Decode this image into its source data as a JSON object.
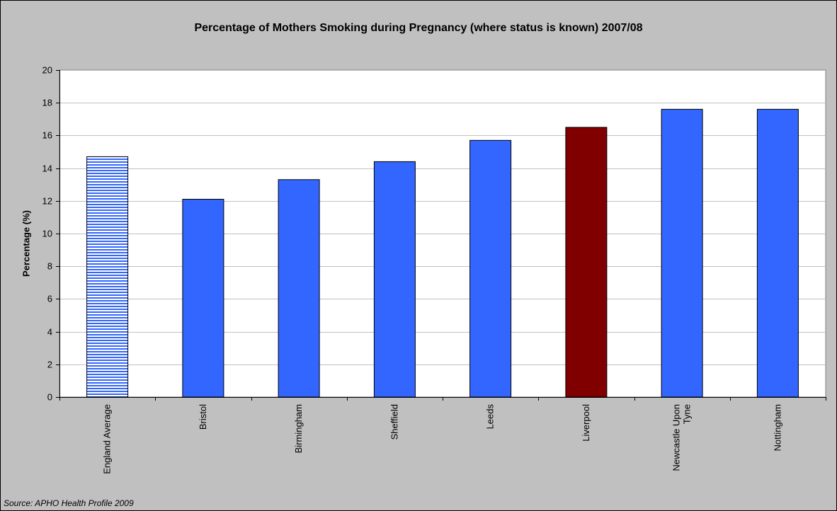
{
  "chart_data": {
    "type": "bar",
    "title": "Percentage of Mothers Smoking during Pregnancy (where status is known) 2007/08",
    "ylabel": "Percentage (%)",
    "xlabel": "",
    "ylim": [
      0,
      20
    ],
    "ytick_step": 2,
    "grid": "horizontal",
    "legend": "none",
    "categories": [
      "England Average",
      "Bristol",
      "Birmingham",
      "Sheffield",
      "Leeds",
      "Liverpool",
      "Newcastle Upon Tyne",
      "Nottingham"
    ],
    "category_lines": [
      [
        "England Average"
      ],
      [
        "Bristol"
      ],
      [
        "Birmingham"
      ],
      [
        "Sheffield"
      ],
      [
        "Leeds"
      ],
      [
        "Liverpool"
      ],
      [
        "Newcastle Upon",
        "Tyne"
      ],
      [
        "Nottingham"
      ]
    ],
    "values": [
      14.7,
      12.1,
      13.3,
      14.4,
      15.7,
      16.5,
      17.6,
      17.6
    ],
    "bar_styles": [
      "striped",
      "solid",
      "solid",
      "solid",
      "solid",
      "solid",
      "solid",
      "solid"
    ],
    "bar_colors": [
      "#3366ff",
      "#3366ff",
      "#3366ff",
      "#3366ff",
      "#3366ff",
      "#800000",
      "#3366ff",
      "#3366ff"
    ],
    "colors": {
      "default_bar": "#3366ff",
      "highlight_bar": "#800000",
      "plot_background": "#ffffff",
      "chart_background": "#c0c0c0",
      "gridline": "#c0c0c0"
    },
    "source": "Source: APHO Health Profile 2009"
  }
}
